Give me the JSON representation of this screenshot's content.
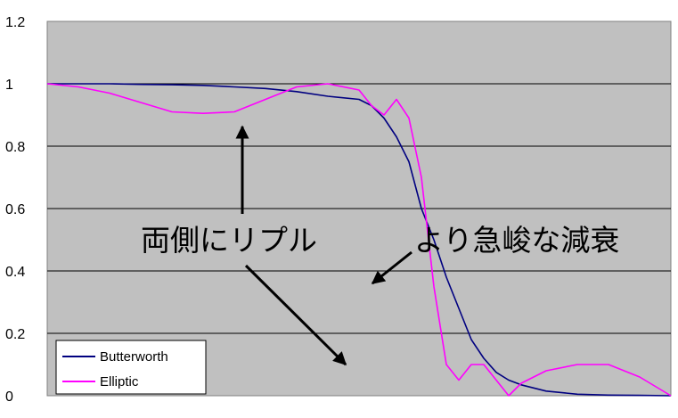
{
  "chart_data": {
    "type": "line",
    "title": "",
    "xlabel": "",
    "ylabel": "",
    "ylim": [
      0,
      1.2
    ],
    "y_ticks": [
      "0",
      "0.2",
      "0.4",
      "0.6",
      "0.8",
      "1",
      "1.2"
    ],
    "grid": "horizontal",
    "plot_background": "#c0c0c0",
    "legend_position": "bottom-left",
    "x": [
      0,
      0.05,
      0.1,
      0.15,
      0.2,
      0.25,
      0.3,
      0.35,
      0.4,
      0.45,
      0.5,
      0.52,
      0.54,
      0.56,
      0.58,
      0.6,
      0.62,
      0.64,
      0.66,
      0.68,
      0.7,
      0.72,
      0.74,
      0.76,
      0.8,
      0.85,
      0.9,
      0.95,
      1.0
    ],
    "series": [
      {
        "name": "Butterworth",
        "color": "#000080",
        "values": [
          1.0,
          1.0,
          1.0,
          0.998,
          0.997,
          0.995,
          0.99,
          0.985,
          0.975,
          0.96,
          0.95,
          0.93,
          0.89,
          0.83,
          0.75,
          0.6,
          0.5,
          0.38,
          0.28,
          0.18,
          0.12,
          0.075,
          0.05,
          0.035,
          0.015,
          0.005,
          0.002,
          0.001,
          0.0
        ]
      },
      {
        "name": "Elliptic",
        "color": "#ff00ff",
        "values": [
          1.0,
          0.99,
          0.97,
          0.94,
          0.91,
          0.905,
          0.91,
          0.95,
          0.99,
          1.0,
          0.98,
          0.93,
          0.9,
          0.95,
          0.89,
          0.7,
          0.35,
          0.1,
          0.05,
          0.1,
          0.1,
          0.05,
          0.0,
          0.04,
          0.08,
          0.1,
          0.1,
          0.06,
          0.0
        ]
      }
    ],
    "annotations": [
      {
        "text": "両側にリプル"
      },
      {
        "text": "より急峻な減衰"
      }
    ]
  }
}
